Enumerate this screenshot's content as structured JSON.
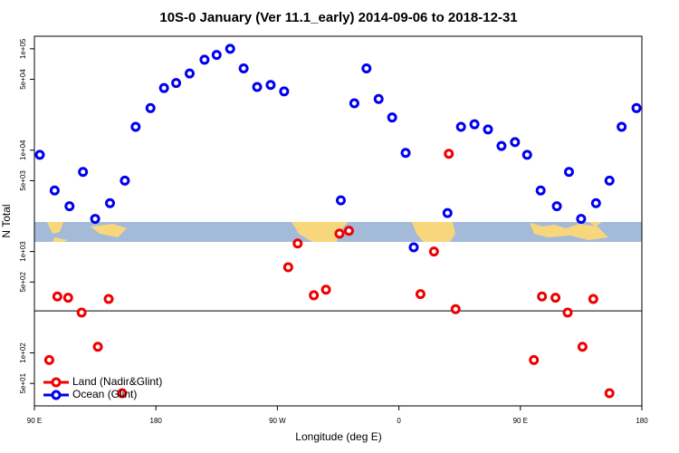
{
  "chart_data": {
    "type": "scatter",
    "title": "10S-0 January (Ver 11.1_early)   2014-09-06 to 2018-12-31",
    "x_label": "Longitude (deg E)",
    "y_label": "N Total",
    "xlim": [
      90,
      540
    ],
    "xticks": [
      {
        "value": 90,
        "label": "90 E"
      },
      180,
      {
        "value": 270,
        "label": "90 W"
      },
      {
        "value": 360,
        "label": "0"
      },
      {
        "value": 450,
        "label": "90 E"
      },
      {
        "value": 540,
        "label": "180"
      }
    ],
    "ylim": [
      30,
      133000
    ],
    "log_y": true,
    "yticks": [
      {
        "value": 50,
        "label": "5e+01"
      },
      {
        "value": 100,
        "label": "1e+02"
      },
      {
        "value": 500,
        "label": "5e+02"
      },
      {
        "value": 1000,
        "label": "1e+03"
      },
      {
        "value": 5000,
        "label": "5e+03"
      },
      {
        "value": 10000,
        "label": "1e+04"
      },
      {
        "value": 50000,
        "label": "5e+04"
      },
      {
        "value": 100000,
        "label": "1e+05"
      }
    ],
    "hline": 260,
    "legend": "bottom-left",
    "series": [
      {
        "name": "Land (Nadir&Glint)",
        "color": "#ee0000",
        "x": [
          101,
          107,
          115,
          125,
          137,
          145,
          155,
          278,
          285,
          297,
          306,
          316,
          323,
          376,
          386,
          397,
          402,
          460,
          466,
          476,
          485,
          496,
          504,
          516
        ],
        "values": [
          85,
          360,
          350,
          250,
          115,
          340,
          40,
          700,
          1200,
          370,
          420,
          1500,
          1600,
          380,
          1000,
          9200,
          270,
          85,
          360,
          350,
          250,
          115,
          340,
          40
        ]
      },
      {
        "name": "Ocean (Glint)",
        "color": "#0000ee",
        "x": [
          94,
          105,
          116,
          126,
          135,
          146,
          157,
          165,
          176,
          186,
          195,
          205,
          216,
          225,
          235,
          245,
          255,
          265,
          275,
          317,
          327,
          336,
          345,
          355,
          365,
          371,
          396,
          406,
          416,
          426,
          436,
          446,
          455,
          465,
          477,
          486,
          495,
          506,
          516,
          525,
          536
        ],
        "values": [
          9000,
          4000,
          2800,
          6100,
          2100,
          3000,
          5000,
          17000,
          26000,
          41000,
          46000,
          57000,
          78000,
          87000,
          100000,
          64000,
          42000,
          44000,
          38000,
          3200,
          29000,
          64000,
          32000,
          21000,
          9400,
          1100,
          2400,
          17000,
          18000,
          16000,
          11000,
          12000,
          9000,
          4000,
          2800,
          6100,
          2100,
          3000,
          5000,
          17000,
          26000
        ]
      }
    ]
  }
}
